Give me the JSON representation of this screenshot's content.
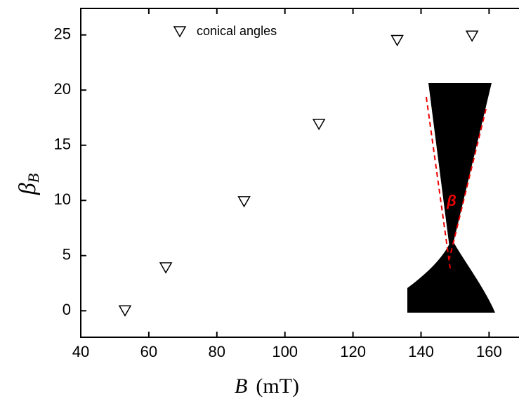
{
  "chart_data": {
    "type": "scatter",
    "x_label": {
      "symbol": "B",
      "unit": "(mT)"
    },
    "y_label": {
      "symbol": "β",
      "subscript": "B"
    },
    "series": [
      {
        "name": "conical angles",
        "color": "#000000",
        "x": [
          53,
          65,
          88,
          110,
          133,
          155
        ],
        "values": [
          0,
          3.9,
          9.9,
          16.9,
          24.5,
          24.9
        ]
      }
    ],
    "xlim": [
      40,
      169
    ],
    "xticks": [
      40,
      60,
      80,
      100,
      120,
      140,
      160
    ],
    "ylim": [
      -2.4,
      27.4
    ],
    "yticks": [
      0,
      5,
      10,
      15,
      20,
      25
    ],
    "annotations": [
      "β"
    ]
  }
}
